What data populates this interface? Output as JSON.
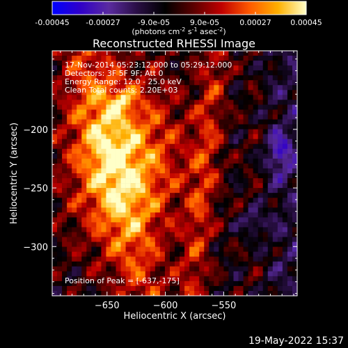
{
  "chart_data": {
    "type": "heatmap",
    "title": "Reconstructed RHESSI Image",
    "xlabel": "Heliocentric X (arcsec)",
    "ylabel": "Heliocentric Y (arcsec)",
    "xlim": [
      -697,
      -487
    ],
    "ylim": [
      -342,
      -133
    ],
    "x_ticks": [
      -650,
      -600,
      -550
    ],
    "y_ticks": [
      -300,
      -250,
      -200
    ],
    "colorbar": {
      "range": [
        -0.00045,
        0.00045
      ],
      "tick_labels": [
        "-0.00045",
        "-0.00027",
        "-9.0e-05",
        "9.0e-05",
        "0.00027",
        "0.00045"
      ],
      "units_main": "(photons cm",
      "units_exp1": "-2",
      "units_mid": " s",
      "units_exp2": "-1",
      "units_end": " asec",
      "units_exp3": "-2",
      "units_close": ")",
      "colormap": [
        "#0000ff",
        "#3000c8",
        "#5a2ba0",
        "#2a0f45",
        "#000000",
        "#5a0000",
        "#c00000",
        "#ff5a00",
        "#ffb000",
        "#ffffc8"
      ]
    },
    "annotations": [
      "17-Nov-2014 05:23:12.000 to 05:29:12.000",
      "Detectors: 3F 5F 9F; Att 0",
      "Energy Range: 12.0 - 25.0 keV",
      "Clean    Total counts: 2.20E+03"
    ],
    "peak_label": "Position of Peak = [-637,-175]",
    "peak": {
      "x": -637,
      "y": -175
    }
  },
  "footer": {
    "timestamp": "19-May-2022 15:37"
  }
}
